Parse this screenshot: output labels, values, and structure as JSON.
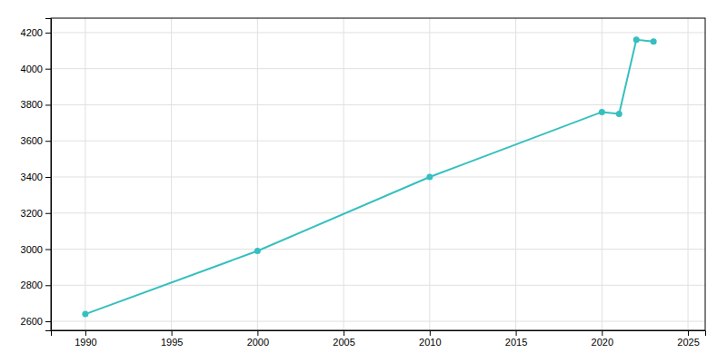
{
  "chart_data": {
    "type": "line",
    "x": [
      1990,
      2000,
      2010,
      2020,
      2021,
      2022,
      2023
    ],
    "values": [
      2640,
      2990,
      3400,
      3760,
      3750,
      4160,
      4150
    ],
    "color": "#36bfbf",
    "marker": "circle",
    "xlim": [
      1988,
      2026
    ],
    "ylim": [
      2550,
      4280
    ],
    "xticks": [
      1990,
      1995,
      2000,
      2005,
      2010,
      2015,
      2020,
      2025
    ],
    "yticks": [
      2600,
      2800,
      3000,
      3200,
      3400,
      3600,
      3800,
      4000,
      4200
    ],
    "grid": true
  }
}
